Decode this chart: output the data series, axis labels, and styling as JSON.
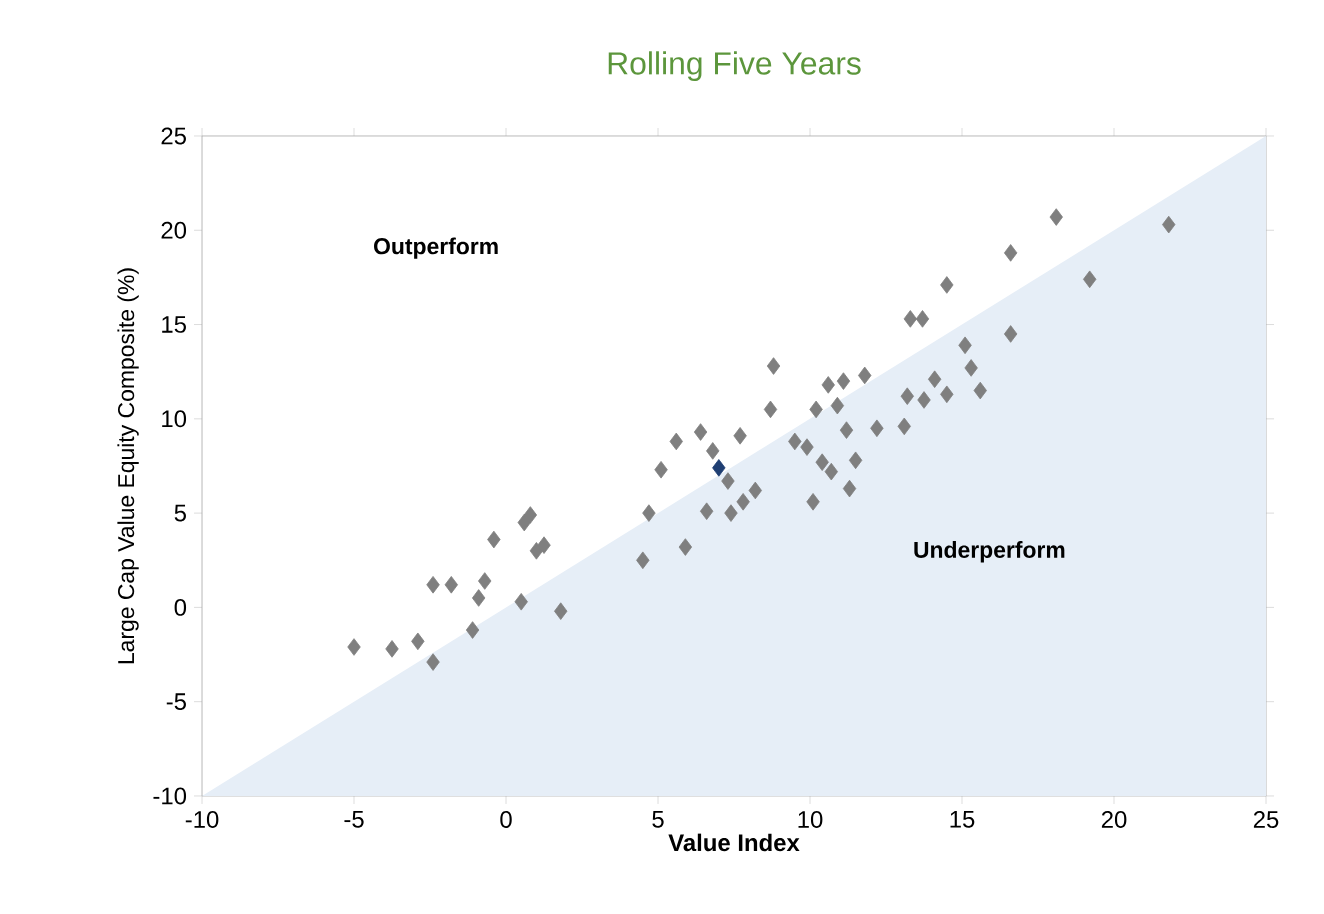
{
  "chart_data": {
    "type": "scatter",
    "title": "Rolling Five Years",
    "xlabel": "Value Index",
    "ylabel": "Large Cap Value Equity Composite (%)",
    "annotations": [
      "Outperform",
      "Underperform"
    ],
    "xlim": [
      -10,
      25
    ],
    "ylim": [
      -10,
      25
    ],
    "xticks": [
      -10,
      -5,
      0,
      5,
      10,
      15,
      20,
      25
    ],
    "yticks": [
      -10,
      -5,
      0,
      5,
      10,
      15,
      20,
      25
    ],
    "grid": false,
    "series": [
      {
        "type": "area",
        "color": "#e6eef7",
        "x": [
          -10,
          25
        ],
        "values": [
          -10,
          25
        ]
      },
      {
        "color": "#7f7f7f",
        "marker": "diamond",
        "x": [
          -5.0,
          -3.75,
          -2.9,
          -2.4,
          -2.4,
          -1.8,
          -1.1,
          -0.9,
          -0.7,
          -0.4,
          0.6,
          0.8,
          1.0,
          1.25,
          1.8,
          0.5,
          4.5,
          4.7,
          5.1,
          5.6,
          5.9,
          6.4,
          6.6,
          6.8,
          7.3,
          7.4,
          7.8,
          7.7,
          8.2,
          8.7,
          8.8,
          9.5,
          9.9,
          10.1,
          10.2,
          10.4,
          10.6,
          10.7,
          10.9,
          11.1,
          11.2,
          11.3,
          11.5,
          11.8,
          12.2,
          13.1,
          13.2,
          13.3,
          13.7,
          13.75,
          14.1,
          14.5,
          14.5,
          15.1,
          15.3,
          15.6,
          16.6,
          16.6,
          18.1,
          19.2,
          21.8
        ],
        "values": [
          -2.1,
          -2.2,
          -1.8,
          -2.9,
          1.2,
          1.2,
          -1.2,
          0.5,
          1.4,
          3.6,
          4.5,
          4.9,
          3.0,
          3.3,
          -0.2,
          0.3,
          2.5,
          5.0,
          7.3,
          8.8,
          3.2,
          9.3,
          5.1,
          8.3,
          6.7,
          5.0,
          5.6,
          9.1,
          6.2,
          10.5,
          12.8,
          8.8,
          8.5,
          5.6,
          10.5,
          7.7,
          11.8,
          7.2,
          10.7,
          12.0,
          9.4,
          6.3,
          7.8,
          12.3,
          9.5,
          9.6,
          11.2,
          15.3,
          15.3,
          11.0,
          12.1,
          11.3,
          17.1,
          13.9,
          12.7,
          11.5,
          14.5,
          18.8,
          20.7,
          17.4,
          20.3
        ]
      },
      {
        "color": "#1f3f73",
        "marker": "diamond",
        "x": [
          7.0
        ],
        "values": [
          7.4
        ]
      }
    ]
  }
}
